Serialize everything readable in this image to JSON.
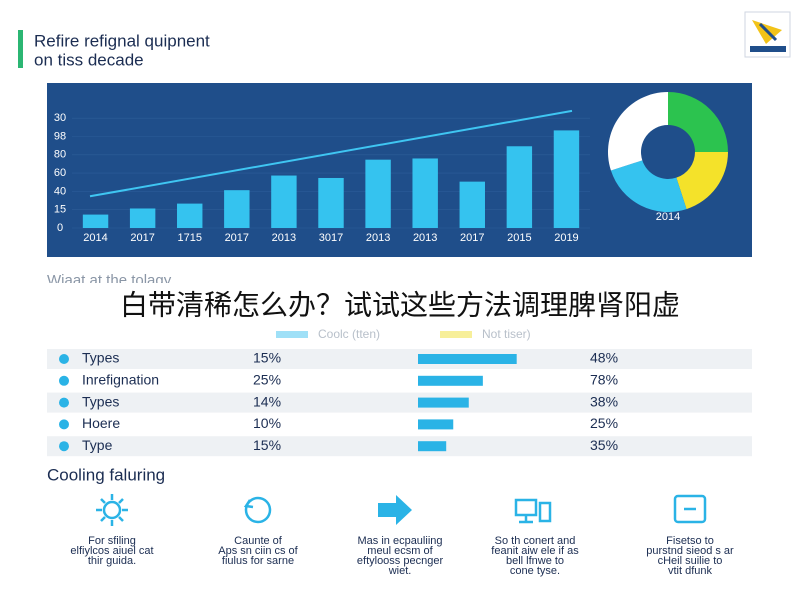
{
  "header": {
    "title_lines": [
      "Refire refignal quipnent",
      "on tiss decade"
    ]
  },
  "chart_data": {
    "type": "bar",
    "categories": [
      "2014",
      "2017",
      "1715",
      "2017",
      "2013",
      "3017",
      "2013",
      "2013",
      "2017",
      "2015",
      "2019"
    ],
    "values": [
      11,
      16,
      20,
      31,
      43,
      41,
      56,
      57,
      38,
      67,
      80
    ],
    "color": "#35c3ef",
    "trend": {
      "color": "#3fc6f2",
      "values": [
        26,
        96
      ]
    },
    "ylim": [
      0,
      100
    ],
    "yticks": [
      0,
      {
        "value": 15,
        "label": "15"
      },
      {
        "value": 30,
        "label": "40"
      },
      {
        "value": 45,
        "label": "60"
      },
      {
        "value": 60,
        "label": "80"
      },
      {
        "value": 75,
        "label": "98"
      },
      {
        "value": 90,
        "label": "30"
      }
    ]
  },
  "donut": {
    "type": "pie",
    "label": "2014",
    "values": [
      25,
      20,
      25,
      30
    ],
    "colors": [
      "#2cc34f",
      "#f4e22a",
      "#35c3ef",
      "#ffffff"
    ]
  },
  "section_label": "Wiaat at the tolagy",
  "caption": "白带清稀怎么办？试试这些方法调理脾肾阳虚",
  "legend": [
    {
      "name": "Coolc (tten)",
      "color": "#9fe0f7"
    },
    {
      "name": "Not tiser)",
      "color": "#f7ef9a"
    }
  ],
  "table": {
    "rows": [
      {
        "name": "Types",
        "share": "15%",
        "bar": 70,
        "result": "48%"
      },
      {
        "name": "Inrefignation",
        "share": "25%",
        "bar": 46,
        "result": "78%"
      },
      {
        "name": "Types",
        "share": "14%",
        "bar": 36,
        "result": "38%"
      },
      {
        "name": "Hoere",
        "share": "10%",
        "bar": 25,
        "result": "25%"
      },
      {
        "name": "Type",
        "share": "15%",
        "bar": 20,
        "result": "35%"
      }
    ]
  },
  "features": {
    "title": "Cooling faluring",
    "items": [
      {
        "lines": [
          "For sfiling",
          "elfiylcos aiuel cat",
          "thir guida."
        ]
      },
      {
        "lines": [
          "Caunte of",
          "Aps sn ciin cs of",
          "fiulus for sarne"
        ]
      },
      {
        "lines": [
          "Mas in ecpauliing",
          "meul ecsm of",
          "eftylooss pecnger",
          "wiet."
        ]
      },
      {
        "lines": [
          "So th conert and",
          "feanit aiw ele if as",
          "bell lfnwe to",
          "cone tyse."
        ]
      },
      {
        "lines": [
          "Fisetso to",
          "purstnd sieod s ar",
          "cHeil suilie to",
          "vtit dfunk"
        ]
      }
    ]
  }
}
